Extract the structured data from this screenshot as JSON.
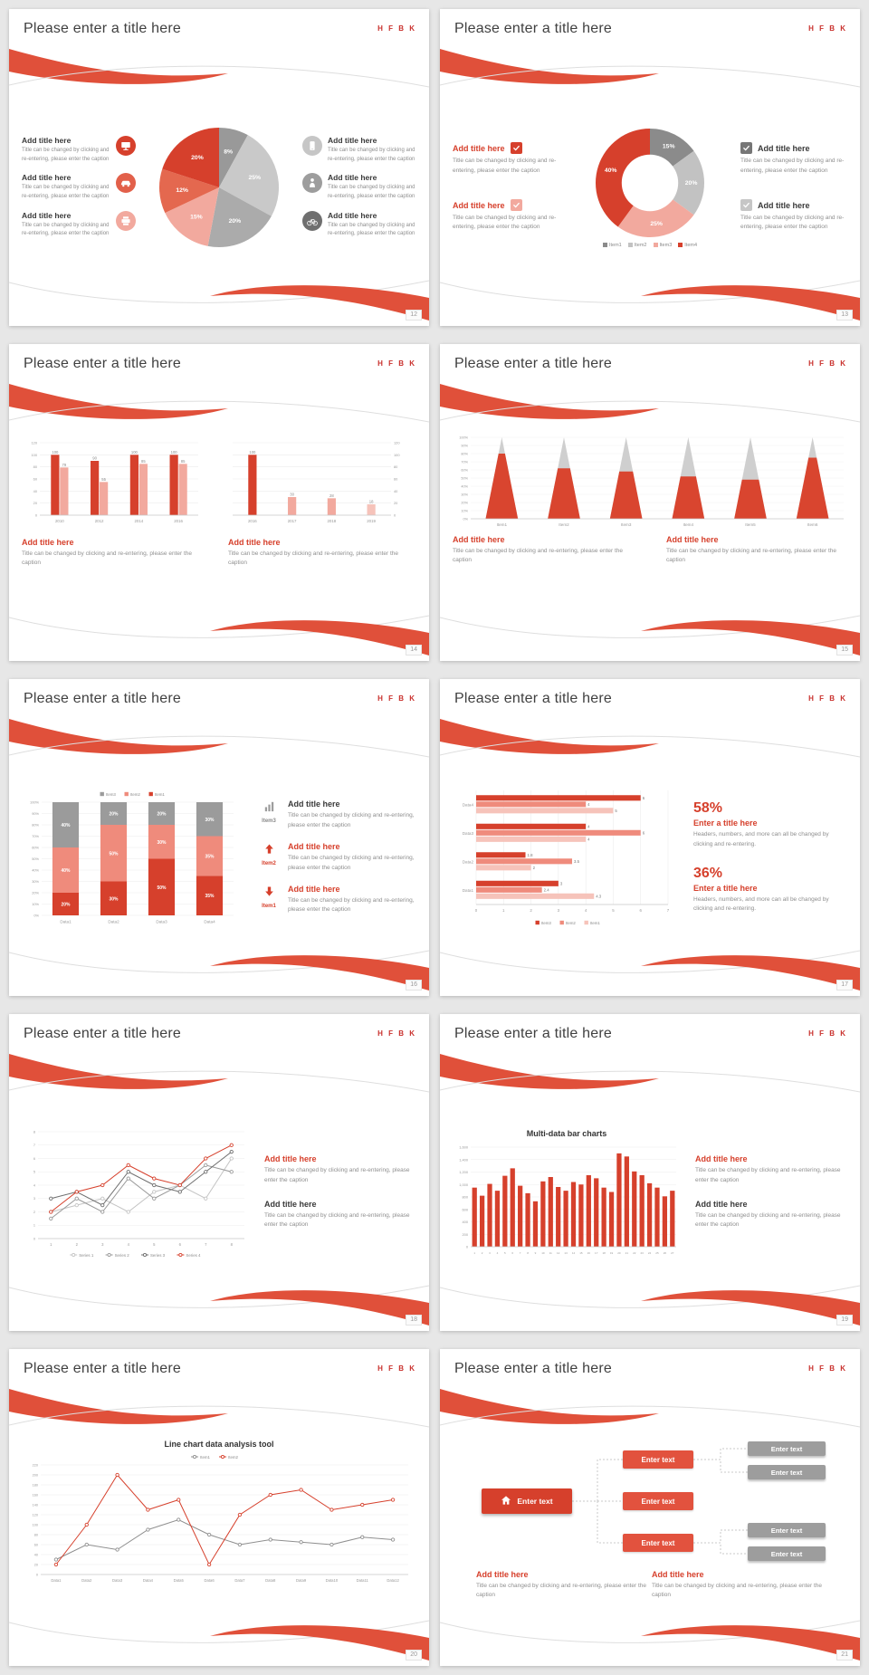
{
  "common": {
    "slide_title": "Please enter a title here",
    "logo": "H F B K",
    "add_title": "Add title here",
    "enter_text": "Enter text",
    "enter_title": "Enter a title here",
    "caption": "Title can be changed by clicking and re-entering, please enter the caption",
    "stats_caption": "Headers, numbers, and more can all be changed by clicking and re-entering.",
    "colors": {
      "red": "#d6402c",
      "salmon": "#ef8b7c",
      "light_salmon": "#f6c3ba",
      "gray_dark": "#6f6f6f",
      "gray": "#9d9d9d",
      "gray_light": "#c6c6c6"
    }
  },
  "slides": [
    {
      "page": "12",
      "chart_data": {
        "type": "pie",
        "values": [
          8,
          25,
          20,
          15,
          12,
          20
        ],
        "labels": [
          "8%",
          "25%",
          "20%",
          "15%",
          "12%",
          "20%"
        ],
        "colors": [
          "#999999",
          "#c9c9c9",
          "#ababab",
          "#f2a99e",
          "#e4684f",
          "#d6402c"
        ]
      }
    },
    {
      "page": "13",
      "chart_data": {
        "type": "donut",
        "values": [
          15,
          20,
          25,
          40
        ],
        "labels": [
          "15%",
          "20%",
          "25%",
          "40%"
        ],
        "colors": [
          "#8b8b8b",
          "#c2c2c2",
          "#f2a99e",
          "#d6402c"
        ],
        "legend": [
          {
            "name": "Item1",
            "color": "#8b8b8b"
          },
          {
            "name": "Item2",
            "color": "#c2c2c2"
          },
          {
            "name": "Item3",
            "color": "#f2a99e"
          },
          {
            "name": "Item4",
            "color": "#d6402c"
          }
        ]
      }
    },
    {
      "page": "14",
      "chart_data": [
        {
          "type": "bar",
          "categories": [
            "2010",
            "2012",
            "2014",
            "2016"
          ],
          "series": [
            {
              "name": "Series1",
              "color": "#d6402c",
              "values": [
                100,
                90,
                100,
                100
              ]
            },
            {
              "name": "Series2",
              "color": "#f2a99e",
              "values": [
                79,
                55,
                85,
                85
              ]
            }
          ],
          "ylim": [
            0,
            120
          ],
          "ystep": 20,
          "axis": "left",
          "show_labels": true
        },
        {
          "type": "bar",
          "categories": [
            "2016",
            "2017",
            "2018",
            "2019"
          ],
          "series": [
            {
              "name": "Series1",
              "colors": [
                "#d6402c",
                "#f2a99e",
                "#f2a99e",
                "#f6c3ba"
              ],
              "values": [
                100,
                30,
                28,
                18
              ]
            }
          ],
          "ylim": [
            0,
            120
          ],
          "ystep": 20,
          "axis": "right",
          "show_labels": true
        }
      ]
    },
    {
      "page": "15",
      "chart_data": {
        "type": "cone",
        "categories": [
          "Item1",
          "Item2",
          "Item3",
          "Item4",
          "Item5",
          "Item6"
        ],
        "values": [
          80,
          62,
          58,
          52,
          48,
          75
        ],
        "ylim": [
          0,
          100
        ]
      }
    },
    {
      "page": "16",
      "chart_data": {
        "type": "stacked_bar",
        "categories": [
          "Data1",
          "Data2",
          "Data3",
          "Data4"
        ],
        "series": [
          {
            "name": "Item1",
            "color": "#d6402c",
            "values": [
              20,
              30,
              50,
              35
            ]
          },
          {
            "name": "Item2",
            "color": "#ef8b7c",
            "values": [
              40,
              50,
              30,
              35
            ]
          },
          {
            "name": "Item3",
            "color": "#9b9b9b",
            "values": [
              40,
              20,
              20,
              30
            ]
          }
        ],
        "legend_order": [
          "Item3",
          "Item2",
          "Item1"
        ]
      },
      "rows": [
        {
          "tag": "Item3"
        },
        {
          "tag": "Item2"
        },
        {
          "tag": "Item1"
        }
      ]
    },
    {
      "page": "17",
      "chart_data": {
        "type": "hbar",
        "categories": [
          "Data4",
          "Data3",
          "Data2",
          "Data1"
        ],
        "series": [
          {
            "name": "Item3",
            "color": "#d6402c",
            "values": [
              6,
              4,
              1.8,
              3
            ]
          },
          {
            "name": "Item2",
            "color": "#ef8b7c",
            "values": [
              4,
              6,
              3.5,
              2.4
            ]
          },
          {
            "name": "Item1",
            "color": "#f6c3ba",
            "values": [
              5,
              4,
              2,
              4.3
            ]
          }
        ],
        "xlim": [
          0,
          7
        ]
      },
      "stats": [
        {
          "value": "58%"
        },
        {
          "value": "36%"
        }
      ]
    },
    {
      "page": "18",
      "chart_data": {
        "type": "line",
        "x": [
          "1",
          "2",
          "3",
          "4",
          "5",
          "6",
          "7",
          "8"
        ],
        "series": [
          {
            "name": "Series 1",
            "color": "#c4c4c4",
            "values": [
              2,
              2.5,
              3,
              2,
              3.5,
              4,
              3,
              6
            ]
          },
          {
            "name": "Series 2",
            "color": "#9a9a9a",
            "values": [
              1.5,
              3,
              2,
              4.5,
              3,
              4,
              5.5,
              5
            ]
          },
          {
            "name": "Series 3",
            "color": "#6e6e6e",
            "values": [
              3,
              3.5,
              2.5,
              5,
              4,
              3.5,
              5,
              6.5
            ]
          },
          {
            "name": "Series 4",
            "color": "#d6402c",
            "values": [
              2,
              3.5,
              4,
              5.5,
              4.5,
              4,
              6,
              7
            ]
          }
        ],
        "ylim": [
          0,
          8
        ],
        "ystep": 1,
        "legend_bottom": true
      }
    },
    {
      "page": "19",
      "title": "Multi-data bar charts",
      "chart_data": {
        "type": "bar",
        "categories": [
          "1",
          "2",
          "3",
          "4",
          "5",
          "6",
          "7",
          "8",
          "9",
          "10",
          "11",
          "12",
          "13",
          "14",
          "15",
          "16",
          "17",
          "18",
          "19",
          "20",
          "21",
          "22",
          "23",
          "24",
          "25",
          "26",
          "27"
        ],
        "values": [
          950,
          820,
          1010,
          900,
          1140,
          1260,
          980,
          860,
          730,
          1050,
          1120,
          960,
          900,
          1040,
          1000,
          1150,
          1100,
          950,
          880,
          1500,
          1450,
          1210,
          1150,
          1020,
          950,
          810,
          900
        ],
        "color": "#d6402c",
        "ylim": [
          0,
          1600
        ],
        "ystep": 200,
        "axis": "left",
        "xfont": 3
      }
    },
    {
      "page": "20",
      "title": "Line chart data analysis tool",
      "chart_data": {
        "type": "line",
        "x": [
          "Data1",
          "Data2",
          "Data3",
          "Data4",
          "Data5",
          "Data6",
          "Data7",
          "Data8",
          "Data9",
          "Data10",
          "Data11",
          "Data12"
        ],
        "series": [
          {
            "name": "Item1",
            "color": "#8f8f8f",
            "values": [
              30,
              60,
              50,
              90,
              110,
              80,
              60,
              70,
              65,
              60,
              75,
              70
            ]
          },
          {
            "name": "Item2",
            "color": "#d6402c",
            "values": [
              20,
              100,
              200,
              130,
              150,
              20,
              120,
              160,
              170,
              130,
              140,
              150
            ]
          }
        ],
        "ylim": [
          0,
          220
        ],
        "ystep": 20,
        "legend_top": true
      }
    },
    {
      "page": "21"
    }
  ]
}
